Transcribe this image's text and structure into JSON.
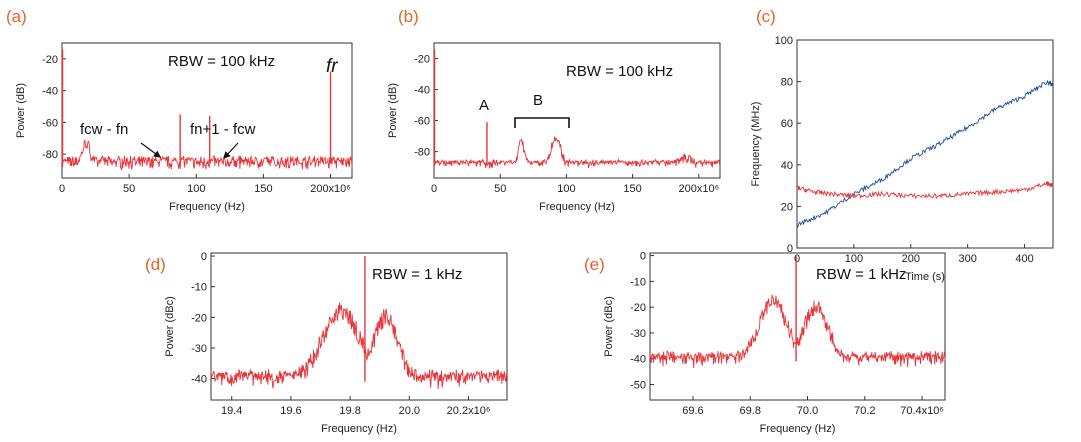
{
  "colors": {
    "red": "#e8353a",
    "blue": "#1f4e9c",
    "panel_letter": "#e8622a"
  },
  "chart_data": [
    {
      "id": "a",
      "panel_label": "(a)",
      "type": "line",
      "xlabel": "Frequency (Hz)",
      "ylabel": "Power (dB)",
      "xticks": [
        "0",
        "50",
        "100",
        "150",
        "200x10⁶"
      ],
      "yticks": [
        "-20",
        "-40",
        "-60",
        "-80"
      ],
      "xlim": [
        0,
        216
      ],
      "ylim": [
        -95,
        -10
      ],
      "annotations": {
        "rbw": "RBW = 100 kHz",
        "fr": "fr",
        "left_peak": "fcw - fn",
        "right_peak": "fn+1 - fcw"
      },
      "series": [
        {
          "color": "red",
          "baseline": -86,
          "noise": 5,
          "features": [
            {
              "x": 0.4,
              "y": -14,
              "kind": "spike"
            },
            {
              "x": 18,
              "y": -73,
              "kind": "bump",
              "w": 4
            },
            {
              "x": 88,
              "y": -55,
              "kind": "spike"
            },
            {
              "x": 110,
              "y": -56,
              "kind": "spike"
            },
            {
              "x": 200,
              "y": -28,
              "kind": "spike"
            }
          ]
        }
      ]
    },
    {
      "id": "b",
      "panel_label": "(b)",
      "type": "line",
      "xlabel": "Frequency (Hz)",
      "ylabel": "Power (dB)",
      "xticks": [
        "0",
        "50",
        "100",
        "150",
        "200x10⁶"
      ],
      "yticks": [
        "-20",
        "-40",
        "-60",
        "-80"
      ],
      "xlim": [
        0,
        216
      ],
      "ylim": [
        -97,
        -10
      ],
      "annotations": {
        "rbw": "RBW = 100 kHz",
        "A": "A",
        "B": "B"
      },
      "series": [
        {
          "color": "red",
          "baseline": -89,
          "noise": 4,
          "features": [
            {
              "x": 0.4,
              "y": -14,
              "kind": "spike"
            },
            {
              "x": 40,
              "y": -61,
              "kind": "spike"
            },
            {
              "x": 66,
              "y": -73,
              "kind": "bump",
              "w": 3
            },
            {
              "x": 92,
              "y": -71,
              "kind": "bump",
              "w": 5
            },
            {
              "x": 190,
              "y": -84,
              "kind": "bump",
              "w": 6
            }
          ]
        }
      ]
    },
    {
      "id": "c",
      "panel_label": "(c)",
      "type": "line",
      "xlabel": "Time (s)",
      "ylabel": "Frequency (MHz)",
      "xticks": [
        "0",
        "100",
        "200",
        "300",
        "400"
      ],
      "yticks": [
        "0",
        "20",
        "40",
        "60",
        "80",
        "100"
      ],
      "xlim": [
        0,
        450
      ],
      "ylim": [
        0,
        100
      ],
      "series": [
        {
          "color": "blue",
          "points": [
            [
              0,
              11
            ],
            [
              50,
              17
            ],
            [
              100,
              26
            ],
            [
              150,
              33
            ],
            [
              200,
              43
            ],
            [
              250,
              50
            ],
            [
              300,
              58
            ],
            [
              350,
              67
            ],
            [
              400,
              73
            ],
            [
              440,
              80
            ],
            [
              450,
              78
            ]
          ]
        },
        {
          "color": "red",
          "points": [
            [
              0,
              29
            ],
            [
              30,
              27
            ],
            [
              60,
              26
            ],
            [
              100,
              25
            ],
            [
              150,
              26
            ],
            [
              200,
              25
            ],
            [
              250,
              25
            ],
            [
              300,
              26
            ],
            [
              350,
              27
            ],
            [
              400,
              28
            ],
            [
              440,
              31
            ],
            [
              450,
              30
            ]
          ]
        }
      ]
    },
    {
      "id": "d",
      "panel_label": "(d)",
      "type": "line",
      "xlabel": "Frequency (Hz)",
      "ylabel": "Power (dBc)",
      "xticks": [
        "19.4",
        "19.6",
        "19.8",
        "20.0",
        "20.2x10⁶"
      ],
      "yticks": [
        "0",
        "-10",
        "-20",
        "-30",
        "-40"
      ],
      "xlim": [
        19.33,
        20.33
      ],
      "ylim": [
        -47,
        1
      ],
      "annotations": {
        "rbw": "RBW = 1 kHz"
      },
      "series": [
        {
          "color": "red",
          "baseline": -41,
          "noise": 4,
          "features": [
            {
              "x": 19.77,
              "y": -18,
              "kind": "bump",
              "w": 0.09
            },
            {
              "x": 19.92,
              "y": -20,
              "kind": "bump",
              "w": 0.06
            },
            {
              "x": 19.85,
              "y": 0,
              "kind": "spike"
            }
          ]
        }
      ]
    },
    {
      "id": "e",
      "panel_label": "(e)",
      "type": "line",
      "xlabel": "Frequency (Hz)",
      "ylabel": "Power (dBc)",
      "xticks": [
        "69.6",
        "69.8",
        "70.0",
        "70.2",
        "70.4x10⁶"
      ],
      "yticks": [
        "0",
        "-10",
        "-20",
        "-30",
        "-40",
        "-50"
      ],
      "xlim": [
        69.45,
        70.48
      ],
      "ylim": [
        -56,
        1
      ],
      "annotations": {
        "rbw": "RBW = 1 kHz"
      },
      "series": [
        {
          "color": "red",
          "baseline": -41,
          "noise": 4,
          "features": [
            {
              "x": 69.88,
              "y": -18,
              "kind": "bump",
              "w": 0.07
            },
            {
              "x": 70.03,
              "y": -20,
              "kind": "bump",
              "w": 0.06
            },
            {
              "x": 69.96,
              "y": 0,
              "kind": "spike"
            }
          ]
        }
      ]
    }
  ]
}
